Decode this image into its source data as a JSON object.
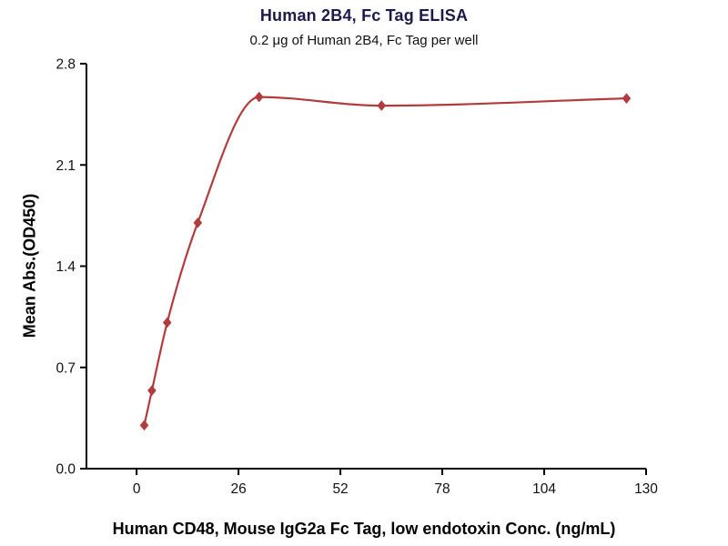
{
  "chart_data": {
    "type": "scatter",
    "title": "Human 2B4, Fc Tag ELISA",
    "subtitle": "0.2 μg of Human 2B4, Fc Tag per well",
    "xlabel": "Human CD48, Mouse IgG2a Fc Tag, low endotoxin Conc. (ng/mL)",
    "ylabel": "Mean Abs.(OD450)",
    "x_ticks": [
      0,
      26,
      52,
      78,
      104,
      130
    ],
    "y_ticks": [
      "0.0",
      "0.7",
      "1.4",
      "2.1",
      "2.8"
    ],
    "xlim": [
      -12.8,
      130
    ],
    "ylim": [
      0,
      2.8
    ],
    "grid": false,
    "legend": "none",
    "series": [
      {
        "name": "Human 2B4, Fc Tag",
        "marker": "diamond",
        "color": "#b23b3d",
        "points": [
          [
            1.95,
            0.3
          ],
          [
            3.9,
            0.54
          ],
          [
            7.8,
            1.01
          ],
          [
            15.6,
            1.7
          ],
          [
            31.25,
            2.57
          ],
          [
            62.5,
            2.51
          ],
          [
            125,
            2.56
          ]
        ]
      }
    ],
    "colors": {
      "accent": "#b23b3d",
      "title": "#1b1b4b",
      "axis": "#000000",
      "text": "#111111"
    }
  }
}
